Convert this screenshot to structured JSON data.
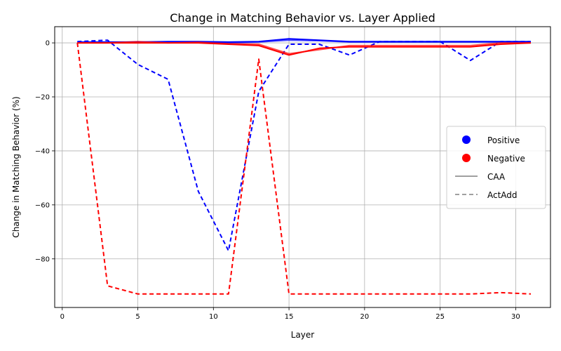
{
  "chart_data": {
    "type": "line",
    "title": "Change in Matching Behavior vs. Layer Applied",
    "xlabel": "Layer",
    "ylabel": "Change in Matching Behavior (%)",
    "xlim": [
      -0.5,
      32.3
    ],
    "ylim": [
      -98,
      6
    ],
    "xticks": [
      0,
      5,
      10,
      15,
      20,
      25,
      30
    ],
    "yticks": [
      0,
      -20,
      -40,
      -60,
      -80
    ],
    "grid": true,
    "legend_placement": "center-right",
    "colors": {
      "positive": "#0000ff",
      "negative": "#ff0000",
      "legend_line": "#808080"
    },
    "legend": [
      {
        "label": "Positive",
        "kind": "marker",
        "color": "#0000ff"
      },
      {
        "label": "Negative",
        "kind": "marker",
        "color": "#ff0000"
      },
      {
        "label": "CAA",
        "kind": "solid"
      },
      {
        "label": "ActAdd",
        "kind": "dashed"
      }
    ],
    "series": [
      {
        "color": "#0000ff",
        "style": "solid",
        "opacity": 1.0,
        "x": [
          1,
          3,
          5,
          7,
          9,
          11,
          13,
          15,
          17,
          19,
          21,
          23,
          25,
          27,
          29,
          31
        ],
        "y": [
          0.3,
          0.3,
          0.3,
          0.5,
          0.5,
          0.3,
          0.5,
          1.5,
          1.0,
          0.5,
          0.5,
          0.5,
          0.5,
          0.5,
          0.5,
          0.5
        ]
      },
      {
        "color": "#0000ff",
        "style": "solid",
        "opacity": 0.7,
        "x": [
          1,
          3,
          5,
          7,
          9,
          11,
          13,
          15,
          17,
          19,
          21,
          23,
          25,
          27,
          29,
          31
        ],
        "y": [
          0.0,
          0.2,
          0.0,
          0.3,
          0.2,
          0.0,
          0.3,
          1.0,
          0.8,
          0.3,
          0.3,
          0.3,
          0.3,
          0.3,
          0.3,
          0.3
        ]
      },
      {
        "color": "#0000ff",
        "style": "dashed",
        "opacity": 1.0,
        "x": [
          1,
          3,
          5,
          7,
          9,
          11,
          13,
          15,
          17,
          19,
          21,
          23,
          25,
          27,
          29,
          31
        ],
        "y": [
          0.5,
          1.0,
          -8,
          -13.5,
          -55,
          -77,
          -18,
          -0.5,
          -0.5,
          -4.5,
          0.5,
          0.5,
          0.5,
          -6.5,
          0.5,
          0.5
        ]
      },
      {
        "color": "#ff0000",
        "style": "solid",
        "opacity": 1.0,
        "x": [
          1,
          3,
          5,
          7,
          9,
          11,
          13,
          15,
          17,
          19,
          21,
          23,
          25,
          27,
          29,
          31
        ],
        "y": [
          0.0,
          0.0,
          0.0,
          0.0,
          0.0,
          -0.5,
          -1.0,
          -4.5,
          -2.0,
          -1.5,
          -1.5,
          -1.5,
          -1.5,
          -1.5,
          -0.5,
          0.0
        ]
      },
      {
        "color": "#ff0000",
        "style": "solid",
        "opacity": 0.7,
        "x": [
          1,
          3,
          5,
          7,
          9,
          11,
          13,
          15,
          17,
          19,
          21,
          23,
          25,
          27,
          29,
          31
        ],
        "y": [
          0.0,
          0.0,
          0.5,
          0.0,
          0.2,
          -0.3,
          -0.5,
          -4.0,
          -2.5,
          -1.0,
          -1.0,
          -1.0,
          -1.0,
          -1.0,
          0.0,
          0.0
        ]
      },
      {
        "color": "#ff0000",
        "style": "dashed",
        "opacity": 1.0,
        "x": [
          1,
          3,
          5,
          7,
          9,
          11,
          13,
          15,
          17,
          19,
          21,
          23,
          25,
          27,
          29,
          31
        ],
        "y": [
          0.0,
          -90,
          -93,
          -93,
          -93,
          -93,
          -6,
          -93,
          -93,
          -93,
          -93,
          -93,
          -93,
          -93,
          -92.5,
          -93
        ]
      }
    ]
  }
}
